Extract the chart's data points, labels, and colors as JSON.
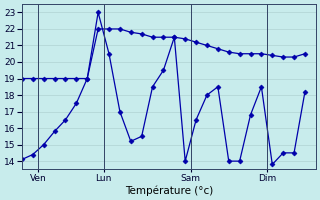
{
  "xlabel": "Température (°c)",
  "ylim": [
    13.5,
    23.5
  ],
  "xlim": [
    0,
    27
  ],
  "yticks": [
    14,
    15,
    16,
    17,
    18,
    19,
    20,
    21,
    22,
    23
  ],
  "xtick_positions": [
    1.5,
    7.5,
    15.5,
    22.5
  ],
  "xtick_labels": [
    "Ven",
    "Lun",
    "Sam",
    "Dim"
  ],
  "vlines": [
    1.5,
    7.5,
    15.5,
    22.5
  ],
  "bg_color": "#c8ecec",
  "line_color": "#0000aa",
  "line1_x": [
    0,
    1,
    2,
    3,
    4,
    5,
    6,
    7,
    8,
    9,
    10,
    11,
    12,
    13,
    14,
    15,
    16,
    17,
    18,
    19,
    20,
    21,
    22,
    23,
    24,
    25,
    26
  ],
  "line1_y": [
    14.1,
    14.4,
    15.0,
    15.8,
    16.5,
    17.5,
    19.0,
    22.0,
    22.0,
    22.0,
    21.8,
    21.7,
    21.5,
    21.5,
    21.5,
    21.4,
    21.2,
    21.0,
    20.8,
    20.6,
    20.5,
    20.5,
    20.5,
    20.4,
    20.3,
    20.3,
    20.5
  ],
  "line2_x": [
    0,
    1,
    2,
    3,
    4,
    5,
    6,
    7,
    8,
    9,
    10,
    11,
    12,
    13,
    14,
    15,
    16,
    17,
    18,
    19,
    20,
    21,
    22,
    23,
    24,
    25,
    26
  ],
  "line2_y": [
    19.0,
    19.0,
    19.0,
    19.0,
    19.0,
    19.0,
    19.0,
    23.0,
    20.5,
    17.0,
    15.2,
    15.5,
    18.5,
    19.5,
    21.5,
    14.0,
    16.5,
    18.0,
    18.5,
    14.0,
    14.0,
    16.8,
    18.5,
    13.8,
    14.5,
    14.5,
    18.2
  ]
}
